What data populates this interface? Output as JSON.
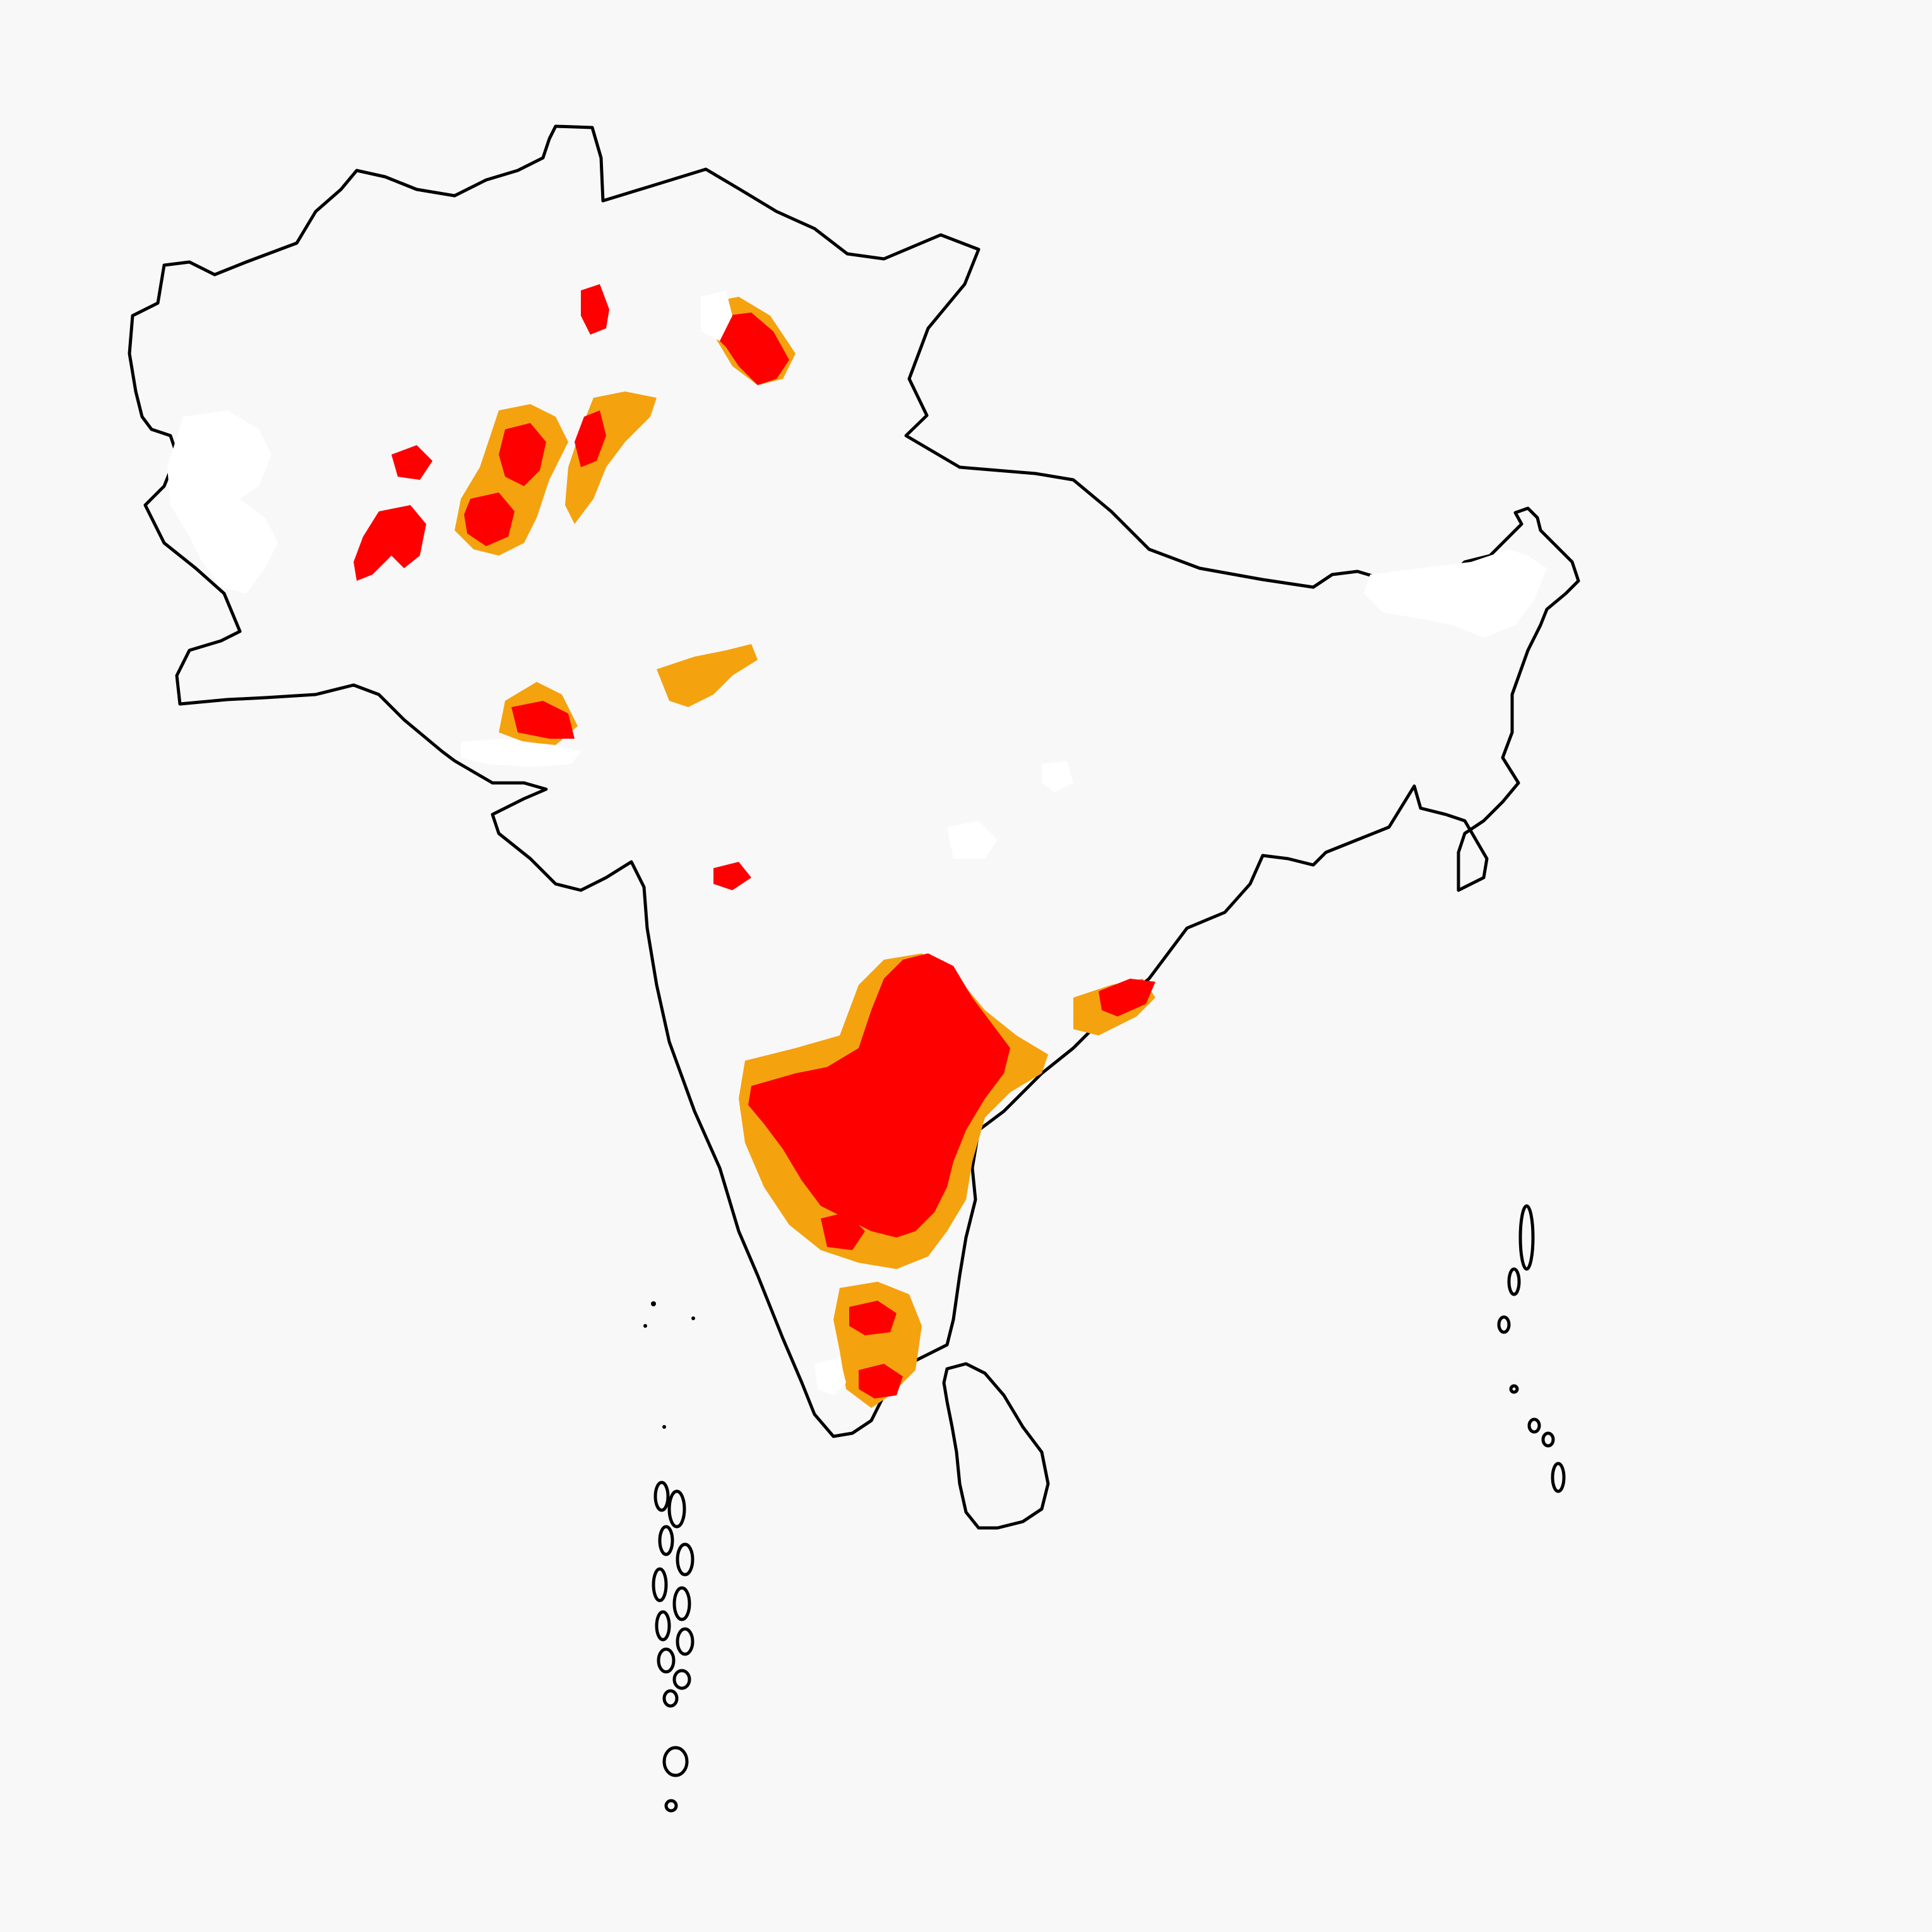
{
  "map": {
    "region": "South Asia",
    "classes": [
      {
        "key": "base",
        "color": "#efdc3c"
      },
      {
        "key": "moderate",
        "color": "#f5a20f"
      },
      {
        "key": "high",
        "color": "#ff0000"
      },
      {
        "key": "no_data",
        "color": "#ffffff"
      }
    ],
    "outline_color": "#000000",
    "background_color": "#f8f8f8"
  }
}
